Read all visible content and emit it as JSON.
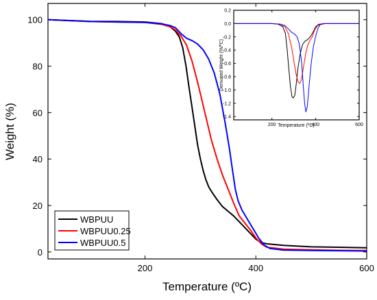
{
  "chart_data": [
    {
      "type": "line",
      "xlabel": "Temperature (ºC)",
      "ylabel": "Weight (%)",
      "xlim": [
        25,
        600
      ],
      "ylim": [
        -3,
        107
      ],
      "xticks": [
        200,
        400,
        600
      ],
      "yticks": [
        0,
        20,
        40,
        60,
        80,
        100
      ],
      "legend_position": "bottom-left",
      "series": [
        {
          "name": "WBPUU",
          "color": "#000000",
          "points": [
            [
              25,
              100
            ],
            [
              100,
              99.3
            ],
            [
              150,
              99.2
            ],
            [
              200,
              99
            ],
            [
              230,
              98.3
            ],
            [
              245,
              97
            ],
            [
              255,
              95
            ],
            [
              262,
              92.5
            ],
            [
              268,
              88
            ],
            [
              274,
              80
            ],
            [
              280,
              70
            ],
            [
              285,
              62
            ],
            [
              290,
              54
            ],
            [
              295,
              46
            ],
            [
              300,
              40
            ],
            [
              305,
              35
            ],
            [
              310,
              31
            ],
            [
              315,
              28
            ],
            [
              320,
              26
            ],
            [
              330,
              22.5
            ],
            [
              340,
              19.5
            ],
            [
              350,
              17.5
            ],
            [
              360,
              15.5
            ],
            [
              370,
              13
            ],
            [
              380,
              10.5
            ],
            [
              390,
              8
            ],
            [
              400,
              5.5
            ],
            [
              410,
              4
            ],
            [
              420,
              3.5
            ],
            [
              450,
              2.8
            ],
            [
              500,
              2.2
            ],
            [
              550,
              2
            ],
            [
              600,
              1.8
            ]
          ]
        },
        {
          "name": "WBPUU0.25",
          "color": "#ff0000",
          "points": [
            [
              25,
              100
            ],
            [
              100,
              99.2
            ],
            [
              150,
              99
            ],
            [
              200,
              98.8
            ],
            [
              230,
              98
            ],
            [
              245,
              97
            ],
            [
              255,
              95.5
            ],
            [
              265,
              93
            ],
            [
              275,
              89
            ],
            [
              285,
              82
            ],
            [
              295,
              73
            ],
            [
              300,
              68
            ],
            [
              310,
              58
            ],
            [
              320,
              48
            ],
            [
              330,
              40
            ],
            [
              340,
              33
            ],
            [
              350,
              27
            ],
            [
              360,
              21
            ],
            [
              370,
              15.5
            ],
            [
              380,
              12.5
            ],
            [
              390,
              9.5
            ],
            [
              400,
              6
            ],
            [
              410,
              3.5
            ],
            [
              420,
              2
            ],
            [
              450,
              1.2
            ],
            [
              500,
              0.9
            ],
            [
              550,
              0.7
            ],
            [
              600,
              0.6
            ]
          ]
        },
        {
          "name": "WBPUU0.5",
          "color": "#0000ff",
          "points": [
            [
              25,
              100
            ],
            [
              100,
              99.2
            ],
            [
              150,
              99
            ],
            [
              200,
              98.8
            ],
            [
              230,
              98.2
            ],
            [
              245,
              97.5
            ],
            [
              255,
              96.5
            ],
            [
              265,
              94
            ],
            [
              275,
              92
            ],
            [
              285,
              91
            ],
            [
              295,
              89.5
            ],
            [
              305,
              87
            ],
            [
              315,
              83
            ],
            [
              325,
              77
            ],
            [
              335,
              68
            ],
            [
              345,
              55
            ],
            [
              352,
              45
            ],
            [
              358,
              35
            ],
            [
              363,
              27
            ],
            [
              368,
              22
            ],
            [
              375,
              18
            ],
            [
              385,
              14
            ],
            [
              395,
              10
            ],
            [
              405,
              6
            ],
            [
              415,
              3
            ],
            [
              425,
              1.5
            ],
            [
              450,
              0.8
            ],
            [
              500,
              0.6
            ],
            [
              550,
              0.5
            ],
            [
              600,
              0.4
            ]
          ]
        }
      ]
    },
    {
      "type": "line",
      "xlabel": "Temperature (ºC)",
      "ylabel": "Derivated Weight (%/ºC)",
      "xlim": [
        25,
        600
      ],
      "ylim": [
        -1.45,
        0.2
      ],
      "xticks": [
        200,
        400,
        600
      ],
      "yticks": [
        0.2,
        0.0,
        -0.2,
        -0.4,
        -0.6,
        -0.8,
        -1.0,
        -1.2,
        -1.4
      ],
      "ytick_labels": [
        "0.2",
        "0.0",
        "-0.2",
        "-0.4",
        "-0.6",
        "-0.8",
        "-1.0",
        "-1.2",
        "-1.4"
      ],
      "series": [
        {
          "name": "WBPUU",
          "color": "#000000",
          "points": [
            [
              25,
              0
            ],
            [
              200,
              0
            ],
            [
              230,
              -0.01
            ],
            [
              250,
              -0.05
            ],
            [
              262,
              -0.15
            ],
            [
              270,
              -0.4
            ],
            [
              278,
              -0.7
            ],
            [
              285,
              -0.95
            ],
            [
              292,
              -1.1
            ],
            [
              298,
              -1.12
            ],
            [
              305,
              -1.08
            ],
            [
              312,
              -0.9
            ],
            [
              320,
              -0.65
            ],
            [
              330,
              -0.45
            ],
            [
              340,
              -0.32
            ],
            [
              350,
              -0.27
            ],
            [
              360,
              -0.25
            ],
            [
              370,
              -0.22
            ],
            [
              380,
              -0.18
            ],
            [
              390,
              -0.12
            ],
            [
              400,
              -0.05
            ],
            [
              415,
              -0.01
            ],
            [
              450,
              0
            ],
            [
              600,
              0
            ]
          ]
        },
        {
          "name": "WBPUU0.25",
          "color": "#ff0000",
          "points": [
            [
              25,
              0
            ],
            [
              200,
              0
            ],
            [
              240,
              -0.01
            ],
            [
              260,
              -0.05
            ],
            [
              275,
              -0.15
            ],
            [
              290,
              -0.35
            ],
            [
              300,
              -0.55
            ],
            [
              310,
              -0.75
            ],
            [
              320,
              -0.88
            ],
            [
              328,
              -0.9
            ],
            [
              335,
              -0.85
            ],
            [
              345,
              -0.65
            ],
            [
              355,
              -0.45
            ],
            [
              365,
              -0.32
            ],
            [
              375,
              -0.25
            ],
            [
              385,
              -0.2
            ],
            [
              395,
              -0.1
            ],
            [
              410,
              -0.03
            ],
            [
              430,
              0
            ],
            [
              600,
              0
            ]
          ]
        },
        {
          "name": "WBPUU0.5",
          "color": "#0000ff",
          "points": [
            [
              25,
              0
            ],
            [
              200,
              0
            ],
            [
              240,
              -0.01
            ],
            [
              260,
              -0.03
            ],
            [
              275,
              -0.08
            ],
            [
              290,
              -0.13
            ],
            [
              305,
              -0.16
            ],
            [
              315,
              -0.2
            ],
            [
              325,
              -0.3
            ],
            [
              335,
              -0.55
            ],
            [
              343,
              -0.9
            ],
            [
              350,
              -1.2
            ],
            [
              356,
              -1.33
            ],
            [
              362,
              -1.25
            ],
            [
              370,
              -0.95
            ],
            [
              380,
              -0.6
            ],
            [
              390,
              -0.35
            ],
            [
              400,
              -0.2
            ],
            [
              410,
              -0.08
            ],
            [
              420,
              -0.02
            ],
            [
              440,
              0
            ],
            [
              600,
              0
            ]
          ]
        }
      ]
    }
  ]
}
